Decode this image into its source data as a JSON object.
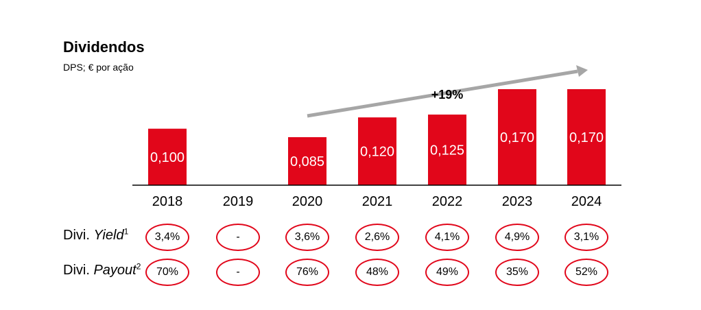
{
  "title": "Dividendos",
  "subtitle": "DPS; € por ação",
  "trend_label": "+19%",
  "colors": {
    "bar": "#e1061a",
    "arrow": "#a6a6a6",
    "pill_border": "#e1061a"
  },
  "chart_data": {
    "type": "bar",
    "categories": [
      "2018",
      "2019",
      "2020",
      "2021",
      "2022",
      "2023",
      "2024"
    ],
    "values": [
      0.1,
      null,
      0.085,
      0.12,
      0.125,
      0.17,
      0.17
    ],
    "value_labels": [
      "0,100",
      "",
      "0,085",
      "0,120",
      "0,125",
      "0,170",
      "0,170"
    ],
    "title": "Dividendos",
    "subtitle": "DPS; € por ação",
    "ylim": [
      0,
      0.18
    ],
    "grid": false
  },
  "rows": [
    {
      "label_prefix": "Divi. ",
      "label_italic": "Yield",
      "label_sup": "1",
      "values": [
        "3,4%",
        "-",
        "3,6%",
        "2,6%",
        "4,1%",
        "4,9%",
        "3,1%"
      ]
    },
    {
      "label_prefix": "Divi. ",
      "label_italic": "Payout",
      "label_sup": "2",
      "values": [
        "70%",
        "-",
        "76%",
        "48%",
        "49%",
        "35%",
        "52%"
      ]
    }
  ]
}
